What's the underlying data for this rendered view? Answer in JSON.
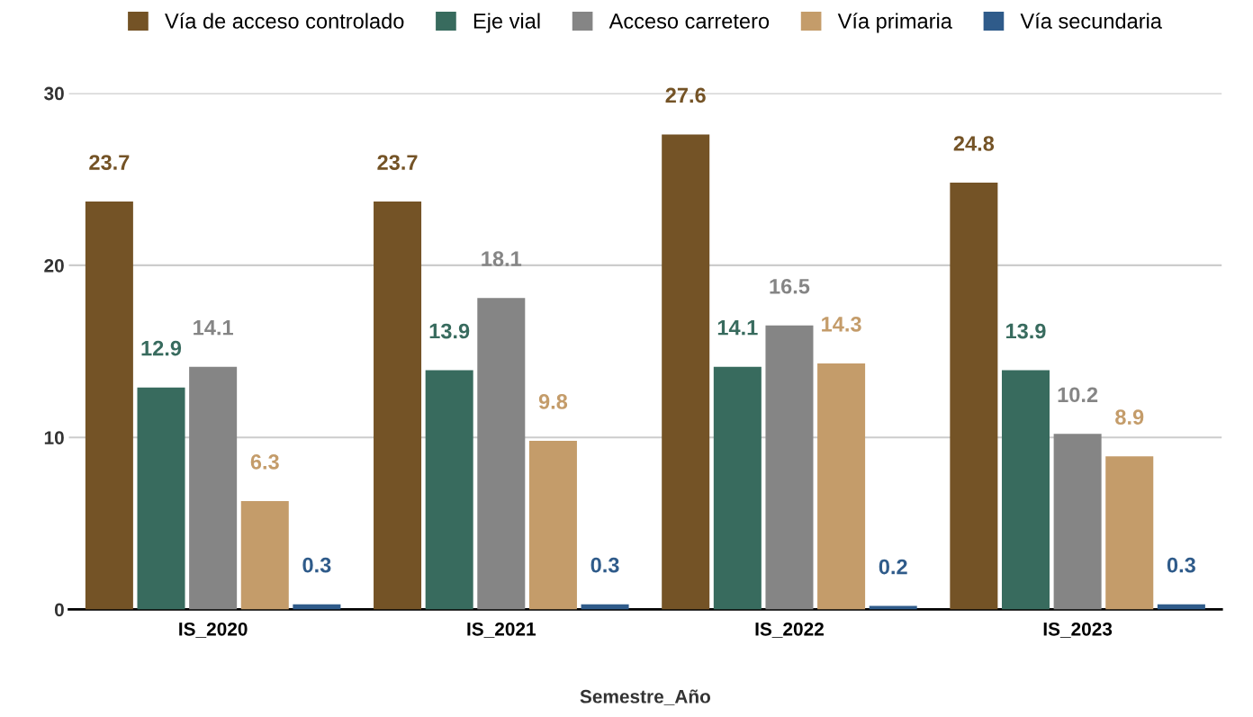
{
  "chart_data": {
    "type": "bar",
    "xlabel": "Semestre_Año",
    "categories": [
      "IS_2020",
      "IS_2021",
      "IS_2022",
      "IS_2023"
    ],
    "series": [
      {
        "name": "Vía de acceso controlado",
        "color": "#745326",
        "values": [
          23.7,
          23.7,
          27.6,
          24.8
        ]
      },
      {
        "name": "Eje vial",
        "color": "#386b5e",
        "values": [
          12.9,
          13.9,
          14.1,
          13.9
        ]
      },
      {
        "name": "Acceso carretero",
        "color": "#858585",
        "values": [
          14.1,
          18.1,
          16.5,
          10.2
        ]
      },
      {
        "name": "Vía primaria",
        "color": "#c49c6a",
        "values": [
          6.3,
          9.8,
          14.3,
          8.9
        ]
      },
      {
        "name": "Vía secundaria",
        "color": "#2f5b8a",
        "values": [
          0.3,
          0.3,
          0.2,
          0.3
        ]
      }
    ],
    "ylim": [
      0,
      30
    ],
    "yticks": [
      0,
      10,
      20,
      30
    ],
    "grid": "y",
    "legend": "top",
    "data_labels": true
  }
}
